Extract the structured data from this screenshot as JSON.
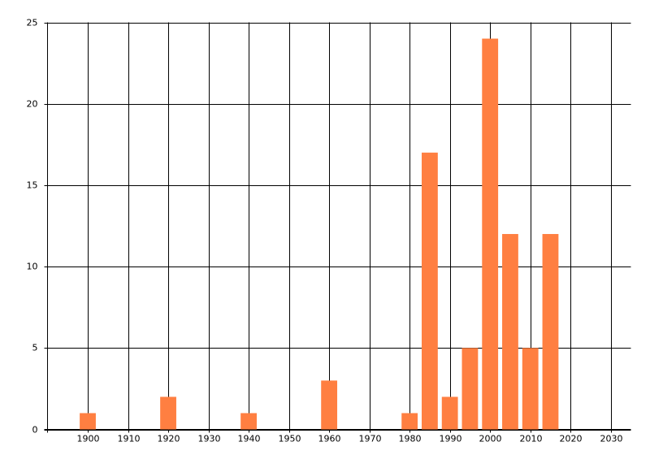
{
  "chart_data": {
    "type": "bar",
    "x": [
      1900,
      1920,
      1940,
      1960,
      1980,
      1985,
      1990,
      1995,
      2000,
      2005,
      2010,
      2015
    ],
    "values": [
      1,
      2,
      1,
      3,
      1,
      17,
      2,
      5,
      24,
      12,
      5,
      12
    ],
    "color": "#ff7f41",
    "xlim": [
      1890,
      2035
    ],
    "xticks": [
      1900,
      1910,
      1920,
      1930,
      1940,
      1950,
      1960,
      1970,
      1980,
      1990,
      2000,
      2010,
      2020,
      2030
    ],
    "ylim": [
      0,
      25
    ],
    "yticks": [
      0,
      5,
      10,
      15,
      20,
      25
    ],
    "grid": true
  }
}
